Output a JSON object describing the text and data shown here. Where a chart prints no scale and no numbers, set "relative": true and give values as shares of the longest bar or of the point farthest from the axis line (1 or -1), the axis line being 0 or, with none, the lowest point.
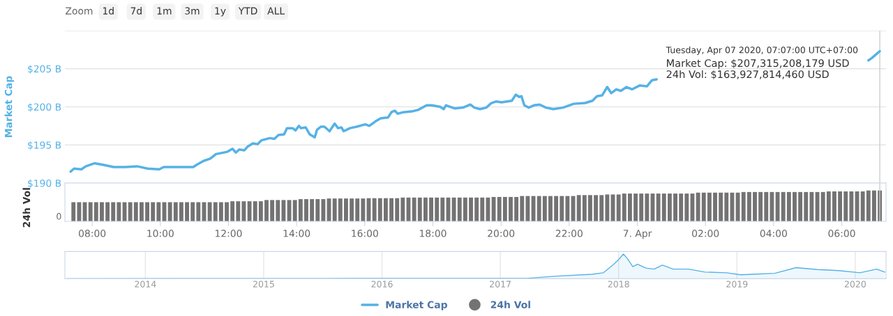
{
  "chart_data": [
    {
      "type": "line",
      "ylabel": "Market Cap",
      "xlim": [
        "2020-04-06T07:12",
        "2020-04-07T07:18"
      ],
      "ylim": [
        190,
        210
      ],
      "yticks": [
        {
          "value": 190,
          "label": "$190 B"
        },
        {
          "value": 195,
          "label": "$195 B"
        },
        {
          "value": 200,
          "label": "$200 B"
        },
        {
          "value": 205,
          "label": "$205 B"
        },
        {
          "value": 210,
          "label": null
        }
      ],
      "grid": "y",
      "tick_labels": "y",
      "legend": "bottom",
      "ref_lines": [
        {
          "axis": "x",
          "value": "2020-04-07T07:07",
          "color": "#cccccc"
        }
      ],
      "annotations": [
        "Zoom",
        "1d",
        "7d",
        "1m",
        "3m",
        "1y",
        "YTD",
        "ALL",
        "Tuesday, Apr 07 2020, 07:07:00 UTC+07:00",
        "Market Cap: $207,315,208,179 USD",
        "24h Vol: $163,927,814,460 USD"
      ],
      "series": [
        {
          "name": "Market Cap",
          "color": "#55b2e6",
          "x": [
            "2020-04-06T07:22",
            "2020-04-06T07:28",
            "2020-04-06T07:41",
            "2020-04-06T07:49",
            "2020-04-06T08:04",
            "2020-04-06T08:19",
            "2020-04-06T08:38",
            "2020-04-06T08:58",
            "2020-04-06T09:19",
            "2020-04-06T09:38",
            "2020-04-06T09:58",
            "2020-04-06T10:06",
            "2020-04-06T10:28",
            "2020-04-06T10:58",
            "2020-04-06T11:04",
            "2020-04-06T11:16",
            "2020-04-06T11:28",
            "2020-04-06T11:38",
            "2020-04-06T11:58",
            "2020-04-06T12:07",
            "2020-04-06T12:13",
            "2020-04-06T12:19",
            "2020-04-06T12:28",
            "2020-04-06T12:34",
            "2020-04-06T12:43",
            "2020-04-06T12:51",
            "2020-04-06T12:58",
            "2020-04-06T13:13",
            "2020-04-06T13:21",
            "2020-04-06T13:28",
            "2020-04-06T13:38",
            "2020-04-06T13:43",
            "2020-04-06T13:53",
            "2020-04-06T13:58",
            "2020-04-06T14:04",
            "2020-04-06T14:08",
            "2020-04-06T14:16",
            "2020-04-06T14:23",
            "2020-04-06T14:32",
            "2020-04-06T14:36",
            "2020-04-06T14:43",
            "2020-04-06T14:49",
            "2020-04-06T14:58",
            "2020-04-06T15:07",
            "2020-04-06T15:13",
            "2020-04-06T15:19",
            "2020-04-06T15:23",
            "2020-04-06T15:34",
            "2020-04-06T15:46",
            "2020-04-06T16:01",
            "2020-04-06T16:08",
            "2020-04-06T16:19",
            "2020-04-06T16:28",
            "2020-04-06T16:41",
            "2020-04-06T16:47",
            "2020-04-06T16:53",
            "2020-04-06T16:58",
            "2020-04-06T17:08",
            "2020-04-06T17:23",
            "2020-04-06T17:34",
            "2020-04-06T17:49",
            "2020-04-06T17:58",
            "2020-04-06T18:13",
            "2020-04-06T18:19",
            "2020-04-06T18:23",
            "2020-04-06T18:38",
            "2020-04-06T18:53",
            "2020-04-06T19:06",
            "2020-04-06T19:13",
            "2020-04-06T19:23",
            "2020-04-06T19:34",
            "2020-04-06T19:43",
            "2020-04-06T19:51",
            "2020-04-06T20:01",
            "2020-04-06T20:19",
            "2020-04-06T20:26",
            "2020-04-06T20:32",
            "2020-04-06T20:36",
            "2020-04-06T20:41",
            "2020-04-06T20:49",
            "2020-04-06T20:58",
            "2020-04-06T21:08",
            "2020-04-06T21:19",
            "2020-04-06T21:32",
            "2020-04-06T21:49",
            "2020-04-06T22:08",
            "2020-04-06T22:28",
            "2020-04-06T22:41",
            "2020-04-06T22:49",
            "2020-04-06T22:58",
            "2020-04-06T23:07",
            "2020-04-06T23:14",
            "2020-04-06T23:23",
            "2020-04-06T23:31",
            "2020-04-06T23:41",
            "2020-04-06T23:51",
            "2020-04-07T00:04",
            "2020-04-07T00:17",
            "2020-04-07T00:26",
            "2020-04-07T00:34",
            "2020-04-07T03:30",
            "2020-04-07T06:47",
            "2020-04-07T06:53",
            "2020-04-07T07:07"
          ],
          "values": [
            191.5,
            191.9,
            191.8,
            192.2,
            192.6,
            192.4,
            192.1,
            192.1,
            192.2,
            191.9,
            191.8,
            192.1,
            192.1,
            192.1,
            192.4,
            192.9,
            193.2,
            193.8,
            194.1,
            194.5,
            194.0,
            194.4,
            194.3,
            194.8,
            195.2,
            195.1,
            195.6,
            195.9,
            195.8,
            196.3,
            196.4,
            197.2,
            197.2,
            196.9,
            197.5,
            197.2,
            197.3,
            196.4,
            196.0,
            197.0,
            197.4,
            197.4,
            196.8,
            197.8,
            197.2,
            197.3,
            196.8,
            197.2,
            197.4,
            197.7,
            197.5,
            198.1,
            198.5,
            198.6,
            199.3,
            199.5,
            199.1,
            199.3,
            199.4,
            199.6,
            200.2,
            200.2,
            200.0,
            199.7,
            200.2,
            199.8,
            199.9,
            200.3,
            199.9,
            199.7,
            199.9,
            200.5,
            200.7,
            200.6,
            200.8,
            201.6,
            201.3,
            201.4,
            200.2,
            199.9,
            200.2,
            200.3,
            199.9,
            199.7,
            199.9,
            200.4,
            200.5,
            200.8,
            201.4,
            201.5,
            202.6,
            201.8,
            202.3,
            202.1,
            202.6,
            202.3,
            202.8,
            202.7,
            203.5,
            203.6,
            null,
            206.1,
            206.4,
            207.3
          ]
        }
      ]
    },
    {
      "type": "bar",
      "relative": true,
      "ylabel": "24h Vol",
      "xlim": [
        "2020-04-06T07:12",
        "2020-04-07T07:18"
      ],
      "xticks": [
        {
          "value": "2020-04-06T08:00",
          "label": "08:00"
        },
        {
          "value": "2020-04-06T10:00",
          "label": "10:00"
        },
        {
          "value": "2020-04-06T12:00",
          "label": "12:00"
        },
        {
          "value": "2020-04-06T14:00",
          "label": "14:00"
        },
        {
          "value": "2020-04-06T16:00",
          "label": "16:00"
        },
        {
          "value": "2020-04-06T18:00",
          "label": "18:00"
        },
        {
          "value": "2020-04-06T20:00",
          "label": "20:00"
        },
        {
          "value": "2020-04-06T22:00",
          "label": "22:00"
        },
        {
          "value": "2020-04-07T00:00",
          "label": "7. Apr"
        },
        {
          "value": "2020-04-07T02:00",
          "label": "02:00"
        },
        {
          "value": "2020-04-07T04:00",
          "label": "04:00"
        },
        {
          "value": "2020-04-07T06:00",
          "label": "06:00"
        }
      ],
      "tick_labels": "x",
      "annotations": [
        "0"
      ],
      "ref_lines": [
        {
          "axis": "x",
          "value": "2020-04-07T07:07",
          "color": "#cccccc"
        }
      ],
      "series": [
        {
          "name": "24h Vol",
          "color": "#737373",
          "x": [
            "2020-04-06T07:27",
            "2020-04-06T07:37",
            "2020-04-06T07:47",
            "2020-04-06T07:57",
            "2020-04-06T08:07",
            "2020-04-06T08:17",
            "2020-04-06T08:27",
            "2020-04-06T08:37",
            "2020-04-06T08:47",
            "2020-04-06T08:57",
            "2020-04-06T09:07",
            "2020-04-06T09:17",
            "2020-04-06T09:27",
            "2020-04-06T09:37",
            "2020-04-06T09:47",
            "2020-04-06T09:57",
            "2020-04-06T10:07",
            "2020-04-06T10:17",
            "2020-04-06T10:27",
            "2020-04-06T10:37",
            "2020-04-06T10:47",
            "2020-04-06T10:57",
            "2020-04-06T11:07",
            "2020-04-06T11:17",
            "2020-04-06T11:27",
            "2020-04-06T11:37",
            "2020-04-06T11:47",
            "2020-04-06T11:57",
            "2020-04-06T12:07",
            "2020-04-06T12:17",
            "2020-04-06T12:27",
            "2020-04-06T12:37",
            "2020-04-06T12:47",
            "2020-04-06T12:57",
            "2020-04-06T13:07",
            "2020-04-06T13:17",
            "2020-04-06T13:27",
            "2020-04-06T13:37",
            "2020-04-06T13:47",
            "2020-04-06T13:57",
            "2020-04-06T14:07",
            "2020-04-06T14:17",
            "2020-04-06T14:27",
            "2020-04-06T14:37",
            "2020-04-06T14:47",
            "2020-04-06T14:57",
            "2020-04-06T15:07",
            "2020-04-06T15:17",
            "2020-04-06T15:27",
            "2020-04-06T15:37",
            "2020-04-06T15:47",
            "2020-04-06T15:57",
            "2020-04-06T16:07",
            "2020-04-06T16:17",
            "2020-04-06T16:27",
            "2020-04-06T16:37",
            "2020-04-06T16:47",
            "2020-04-06T16:57",
            "2020-04-06T17:07",
            "2020-04-06T17:17",
            "2020-04-06T17:27",
            "2020-04-06T17:37",
            "2020-04-06T17:47",
            "2020-04-06T17:57",
            "2020-04-06T18:07",
            "2020-04-06T18:17",
            "2020-04-06T18:27",
            "2020-04-06T18:37",
            "2020-04-06T18:47",
            "2020-04-06T18:57",
            "2020-04-06T19:07",
            "2020-04-06T19:17",
            "2020-04-06T19:27",
            "2020-04-06T19:37",
            "2020-04-06T19:47",
            "2020-04-06T19:57",
            "2020-04-06T20:07",
            "2020-04-06T20:17",
            "2020-04-06T20:27",
            "2020-04-06T20:37",
            "2020-04-06T20:47",
            "2020-04-06T20:57",
            "2020-04-06T21:07",
            "2020-04-06T21:17",
            "2020-04-06T21:27",
            "2020-04-06T21:37",
            "2020-04-06T21:47",
            "2020-04-06T21:57",
            "2020-04-06T22:07",
            "2020-04-06T22:17",
            "2020-04-06T22:27",
            "2020-04-06T22:37",
            "2020-04-06T22:47",
            "2020-04-06T22:57",
            "2020-04-06T23:07",
            "2020-04-06T23:17",
            "2020-04-06T23:27",
            "2020-04-06T23:37",
            "2020-04-06T23:47",
            "2020-04-06T23:57",
            "2020-04-07T00:07",
            "2020-04-07T00:17",
            "2020-04-07T00:27",
            "2020-04-07T00:37",
            "2020-04-07T00:47",
            "2020-04-07T00:57",
            "2020-04-07T01:07",
            "2020-04-07T01:17",
            "2020-04-07T01:27",
            "2020-04-07T01:37",
            "2020-04-07T01:47",
            "2020-04-07T01:57",
            "2020-04-07T02:07",
            "2020-04-07T02:17",
            "2020-04-07T02:27",
            "2020-04-07T02:37",
            "2020-04-07T02:47",
            "2020-04-07T02:57",
            "2020-04-07T03:07",
            "2020-04-07T03:17",
            "2020-04-07T03:27",
            "2020-04-07T03:37",
            "2020-04-07T03:47",
            "2020-04-07T03:57",
            "2020-04-07T04:07",
            "2020-04-07T04:17",
            "2020-04-07T04:27",
            "2020-04-07T04:37",
            "2020-04-07T04:47",
            "2020-04-07T04:57",
            "2020-04-07T05:07",
            "2020-04-07T05:17",
            "2020-04-07T05:27",
            "2020-04-07T05:37",
            "2020-04-07T05:47",
            "2020-04-07T05:57",
            "2020-04-07T06:07",
            "2020-04-07T06:17",
            "2020-04-07T06:27",
            "2020-04-07T06:37",
            "2020-04-07T06:47",
            "2020-04-07T06:57",
            "2020-04-07T07:07"
          ],
          "values": [
            0.62,
            0.62,
            0.62,
            0.62,
            0.62,
            0.62,
            0.62,
            0.62,
            0.62,
            0.62,
            0.62,
            0.62,
            0.62,
            0.62,
            0.62,
            0.62,
            0.62,
            0.62,
            0.62,
            0.62,
            0.62,
            0.62,
            0.62,
            0.62,
            0.62,
            0.62,
            0.62,
            0.62,
            0.65,
            0.65,
            0.65,
            0.65,
            0.65,
            0.65,
            0.69,
            0.69,
            0.69,
            0.69,
            0.69,
            0.69,
            0.72,
            0.72,
            0.72,
            0.72,
            0.72,
            0.74,
            0.74,
            0.74,
            0.74,
            0.74,
            0.74,
            0.74,
            0.75,
            0.75,
            0.75,
            0.75,
            0.75,
            0.75,
            0.77,
            0.77,
            0.77,
            0.77,
            0.77,
            0.77,
            0.77,
            0.77,
            0.77,
            0.77,
            0.77,
            0.77,
            0.77,
            0.77,
            0.77,
            0.77,
            0.79,
            0.79,
            0.79,
            0.79,
            0.79,
            0.82,
            0.82,
            0.82,
            0.82,
            0.82,
            0.82,
            0.82,
            0.82,
            0.82,
            0.82,
            0.85,
            0.85,
            0.85,
            0.85,
            0.85,
            0.87,
            0.87,
            0.87,
            0.9,
            0.9,
            0.9,
            0.9,
            0.9,
            0.9,
            0.9,
            0.9,
            0.9,
            0.9,
            0.9,
            0.9,
            0.9,
            0.93,
            0.93,
            0.93,
            0.93,
            0.93,
            0.93,
            0.93,
            0.93,
            0.95,
            0.95,
            0.95,
            0.95,
            0.95,
            0.95,
            0.95,
            0.95,
            0.95,
            0.95,
            0.95,
            0.95,
            0.95,
            0.95,
            0.95,
            0.97,
            0.97,
            0.97,
            0.97,
            0.97,
            0.97,
            0.97,
            1.0,
            1.0,
            1.0
          ]
        }
      ]
    },
    {
      "type": "area",
      "relative": true,
      "xlim": [
        2013.32,
        2020.26
      ],
      "xticks": [
        2014,
        2015,
        2016,
        2017,
        2018,
        2019,
        2020
      ],
      "grid": "x",
      "tick_labels": "x",
      "series": [
        {
          "color": "#55b2e6",
          "x": [
            2013.34,
            2015.5,
            2017.24,
            2017.46,
            2017.78,
            2017.87,
            2017.96,
            2018.005,
            2018.04,
            2018.07,
            2018.12,
            2018.16,
            2018.23,
            2018.3,
            2018.37,
            2018.46,
            2018.59,
            2018.73,
            2018.91,
            2019.03,
            2019.14,
            2019.32,
            2019.5,
            2019.68,
            2019.86,
            2020.04,
            2020.18,
            2020.25
          ],
          "values": [
            0.0,
            0.01,
            0.02,
            0.1,
            0.18,
            0.24,
            0.59,
            0.8,
            1.0,
            0.84,
            0.49,
            0.59,
            0.43,
            0.39,
            0.55,
            0.39,
            0.39,
            0.27,
            0.24,
            0.16,
            0.18,
            0.22,
            0.45,
            0.37,
            0.33,
            0.24,
            0.39,
            0.27
          ]
        }
      ]
    }
  ]
}
